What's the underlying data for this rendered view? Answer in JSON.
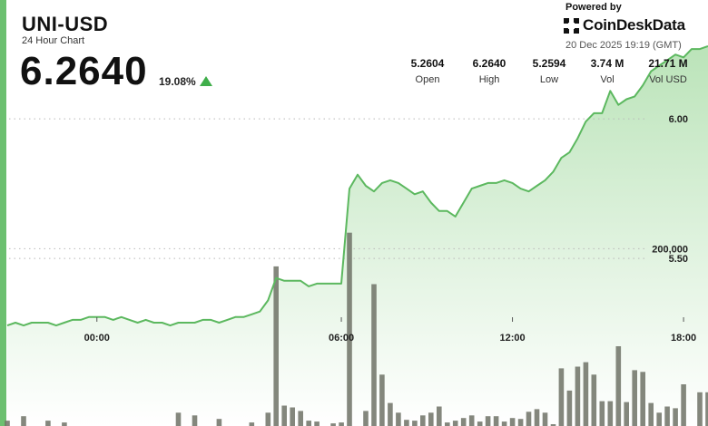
{
  "header": {
    "symbol": "UNI-USD",
    "subtitle": "24 Hour Chart",
    "price": "6.2640",
    "change_pct": "19.08%",
    "change_direction": "up"
  },
  "branding": {
    "powered_by": "Powered by",
    "name": "CoinDeskData",
    "timestamp": "20 Dec 2025 19:19 (GMT)"
  },
  "stats": [
    {
      "value": "5.2604",
      "label": "Open"
    },
    {
      "value": "6.2640",
      "label": "High"
    },
    {
      "value": "5.2594",
      "label": "Low"
    },
    {
      "value": "3.74 M",
      "label": "Vol"
    },
    {
      "value": "21.71 M",
      "label": "Vol USD"
    }
  ],
  "colors": {
    "accent": "#6cc070",
    "line": "#5cb85f",
    "area_top": "#b7e2b5",
    "area_bottom": "#ffffff",
    "volume_bar": "#6e7266",
    "up_arrow": "#3fae4a"
  },
  "chart_data": {
    "type": "line",
    "series": [
      {
        "values": [
          5.26,
          5.27,
          5.26,
          5.27,
          5.27,
          5.27,
          5.26,
          5.27,
          5.28,
          5.28,
          5.29,
          5.29,
          5.29,
          5.28,
          5.29,
          5.28,
          5.27,
          5.28,
          5.27,
          5.27,
          5.26,
          5.27,
          5.27,
          5.27,
          5.28,
          5.28,
          5.27,
          5.28,
          5.29,
          5.29,
          5.3,
          5.31,
          5.35,
          5.43,
          5.42,
          5.42,
          5.42,
          5.4,
          5.41,
          5.41,
          5.41,
          5.41,
          5.75,
          5.8,
          5.76,
          5.74,
          5.77,
          5.78,
          5.77,
          5.75,
          5.73,
          5.74,
          5.7,
          5.67,
          5.67,
          5.65,
          5.7,
          5.75,
          5.76,
          5.77,
          5.77,
          5.78,
          5.77,
          5.75,
          5.74,
          5.76,
          5.78,
          5.81,
          5.86,
          5.88,
          5.93,
          5.99,
          6.02,
          6.02,
          6.1,
          6.05,
          6.07,
          6.08,
          6.12,
          6.17,
          6.19,
          6.21,
          6.23,
          6.22,
          6.25,
          6.25,
          6.26
        ]
      },
      {
        "name": "Volume",
        "values": [
          6000,
          0,
          11000,
          0,
          0,
          6000,
          0,
          4000,
          0,
          0,
          0,
          0,
          0,
          0,
          0,
          0,
          0,
          0,
          0,
          0,
          0,
          15000,
          0,
          12000,
          0,
          0,
          8000,
          0,
          0,
          0,
          4000,
          0,
          15000,
          180000,
          23000,
          21000,
          17000,
          6000,
          5000,
          0,
          3000,
          4000,
          218000,
          0,
          17000,
          160000,
          58000,
          26000,
          15000,
          7000,
          6000,
          12000,
          15000,
          22000,
          4000,
          6000,
          9000,
          12000,
          5000,
          11000,
          11000,
          5000,
          9000,
          8000,
          16000,
          19000,
          15000,
          2000,
          65000,
          40000,
          67000,
          72000,
          58000,
          28000,
          28000,
          90000,
          27000,
          63000,
          61000,
          26000,
          15000,
          22000,
          20000,
          47000,
          0,
          38000,
          38000
        ]
      }
    ],
    "x_tick_labels": [
      "00:00",
      "06:00",
      "12:00",
      "18:00"
    ],
    "y_tick_labels": [
      "5.50",
      "6.00"
    ],
    "volume_tick_label": "200,000",
    "ylim": [
      4.9,
      6.38
    ],
    "volume_ylim": [
      0,
      230000
    ],
    "grid": true
  }
}
